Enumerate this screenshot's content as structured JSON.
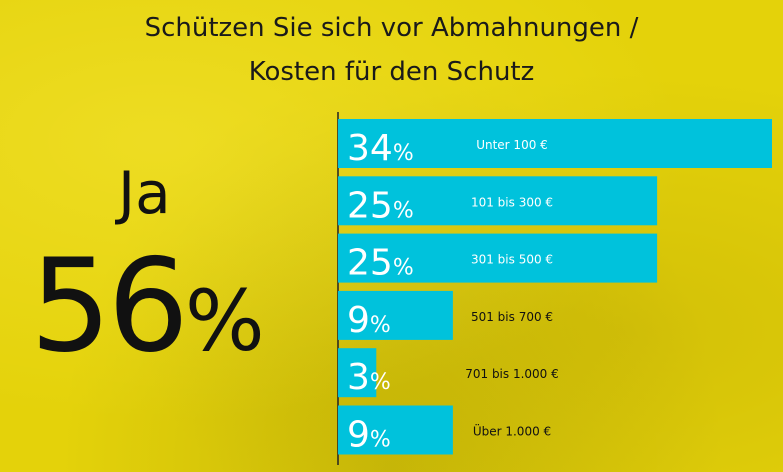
{
  "chart_data": {
    "type": "bar",
    "orientation": "horizontal",
    "title_lines": [
      "Schützen Sie sich vor Abmahnungen /",
      "Kosten für den Schutz"
    ],
    "answer_label": "Ja",
    "answer_value": "56",
    "answer_unit": "%",
    "categories": [
      "Unter 100 €",
      "101 bis 300 €",
      "301 bis 500 €",
      "501 bis 700 €",
      "701 bis 1.000 €",
      "Über 1.000 €"
    ],
    "values": [
      34,
      25,
      25,
      9,
      3,
      9
    ],
    "value_unit": "%",
    "bar_color": "#00c2dc",
    "xlim": [
      0,
      34
    ],
    "grid": false,
    "legend": "none"
  }
}
